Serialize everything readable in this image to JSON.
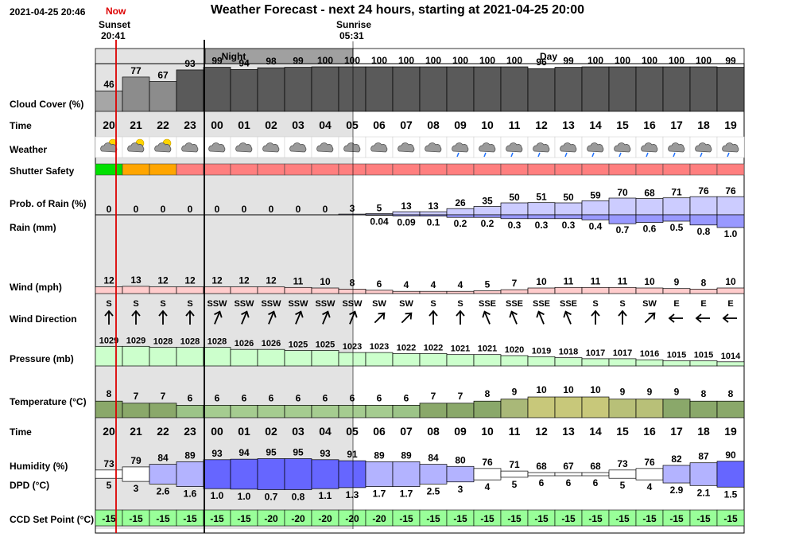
{
  "header": {
    "datetime": "2021-04-25 20:46",
    "now_label": "Now",
    "title": "Weather Forecast - next 24 hours, starting at 2021-04-25 20:00",
    "sunset_label": "Sunset",
    "sunset_time": "20:41",
    "sunrise_label": "Sunrise",
    "sunrise_time": "05:31",
    "night_label": "Night",
    "day_label": "Day"
  },
  "rows": {
    "cloud": "Cloud Cover (%)",
    "time": "Time",
    "weather": "Weather",
    "shutter": "Shutter Safety",
    "prob_rain": "Prob. of Rain (%)",
    "rain": "Rain (mm)",
    "wind": "Wind (mph)",
    "wind_dir": "Wind Direction",
    "pressure": "Pressure (mb)",
    "temperature": "Temperature (°C)",
    "time2": "Time",
    "humidity": "Humidity (%)",
    "dpd": "DPD (°C)",
    "ccd": "CCD Set Point (°C)"
  },
  "colors": {
    "night_bg": "#e3e3e3",
    "cloud_bar": "#5a5a5a",
    "shutter_green": "#00e000",
    "shutter_orange": "#ffa500",
    "shutter_red": "#ff7f7f",
    "rain_fill": "#9999ff",
    "wind_fill": "#ffcccc",
    "pressure_fill": "#ccffcc",
    "temp_fill": "#8aa86a",
    "humidity_fill": "#6666ff",
    "ccd_fill": "#99ff99",
    "now_line": "#dd0000"
  },
  "chart_data": {
    "type": "table",
    "hours": [
      "20",
      "21",
      "22",
      "23",
      "00",
      "01",
      "02",
      "03",
      "04",
      "05",
      "06",
      "07",
      "08",
      "09",
      "10",
      "11",
      "12",
      "13",
      "14",
      "15",
      "16",
      "17",
      "18",
      "19"
    ],
    "cloud_cover": [
      46,
      77,
      67,
      93,
      99,
      94,
      98,
      99,
      100,
      100,
      100,
      100,
      100,
      100,
      100,
      100,
      96,
      99,
      100,
      100,
      100,
      100,
      100,
      99
    ],
    "weather_icons": [
      "partly-cloudy-night-icon",
      "partly-cloudy-night-icon",
      "partly-cloudy-night-icon",
      "cloud-icon",
      "cloud-icon",
      "cloud-icon",
      "cloud-icon",
      "cloud-icon",
      "cloud-icon",
      "cloud-icon",
      "cloud-icon",
      "cloud-icon",
      "cloud-icon",
      "light-rain-icon",
      "light-rain-icon",
      "light-rain-icon",
      "light-rain-icon",
      "light-rain-icon",
      "light-rain-icon",
      "light-rain-icon",
      "light-rain-icon",
      "light-rain-icon",
      "light-rain-icon",
      "light-rain-icon"
    ],
    "shutter_safety": [
      "safe",
      "caution",
      "caution",
      "unsafe",
      "unsafe",
      "unsafe",
      "unsafe",
      "unsafe",
      "unsafe",
      "unsafe",
      "unsafe",
      "unsafe",
      "unsafe",
      "unsafe",
      "unsafe",
      "unsafe",
      "unsafe",
      "unsafe",
      "unsafe",
      "unsafe",
      "unsafe",
      "unsafe",
      "unsafe",
      "unsafe"
    ],
    "prob_rain": [
      0,
      0,
      0,
      0,
      0,
      0,
      0,
      0,
      0,
      3,
      5,
      13,
      13,
      26,
      35,
      50,
      51,
      50,
      59,
      70,
      68,
      71,
      76,
      76
    ],
    "rain_mm": [
      "",
      "",
      "",
      "",
      "",
      "",
      "",
      "",
      "",
      "",
      "0.04",
      "0.09",
      "0.1",
      "0.2",
      "0.2",
      "0.3",
      "0.3",
      "0.3",
      "0.4",
      "0.7",
      "0.6",
      "0.5",
      "0.8",
      "1.0"
    ],
    "wind_mph": [
      12,
      13,
      12,
      12,
      12,
      12,
      12,
      11,
      10,
      8,
      6,
      4,
      4,
      4,
      5,
      7,
      10,
      11,
      11,
      11,
      10,
      9,
      8,
      10
    ],
    "wind_dir": [
      "S",
      "S",
      "S",
      "S",
      "SSW",
      "SSW",
      "SSW",
      "SSW",
      "SSW",
      "SSW",
      "SW",
      "SW",
      "S",
      "S",
      "SSE",
      "SSE",
      "SSE",
      "SSE",
      "S",
      "S",
      "SW",
      "E",
      "E",
      "E"
    ],
    "pressure_mb": [
      1029,
      1029,
      1028,
      1028,
      1028,
      1026,
      1026,
      1025,
      1025,
      1023,
      1023,
      1022,
      1022,
      1021,
      1021,
      1020,
      1019,
      1018,
      1017,
      1017,
      1016,
      1015,
      1015,
      1014
    ],
    "temperature_c": [
      8,
      7,
      7,
      6,
      6,
      6,
      6,
      6,
      6,
      6,
      6,
      6,
      7,
      7,
      8,
      9,
      10,
      10,
      10,
      9,
      9,
      9,
      8,
      8
    ],
    "humidity_pct": [
      73,
      79,
      84,
      89,
      93,
      94,
      95,
      95,
      93,
      91,
      89,
      89,
      84,
      80,
      76,
      71,
      68,
      67,
      68,
      73,
      76,
      82,
      87,
      90
    ],
    "dpd_c": [
      "5",
      "3",
      "2.6",
      "1.6",
      "1.0",
      "1.0",
      "0.7",
      "0.8",
      "1.1",
      "1.3",
      "1.7",
      "1.7",
      "2.5",
      "3",
      "4",
      "5",
      "6",
      "6",
      "6",
      "5",
      "4",
      "2.9",
      "2.1",
      "1.5"
    ],
    "ccd_setpoint": [
      -15,
      -15,
      -15,
      -15,
      -15,
      -15,
      -20,
      -20,
      -20,
      -20,
      -20,
      -15,
      -15,
      -15,
      -15,
      -15,
      -15,
      -15,
      -15,
      -15,
      -15,
      -15,
      -15,
      -15
    ]
  }
}
